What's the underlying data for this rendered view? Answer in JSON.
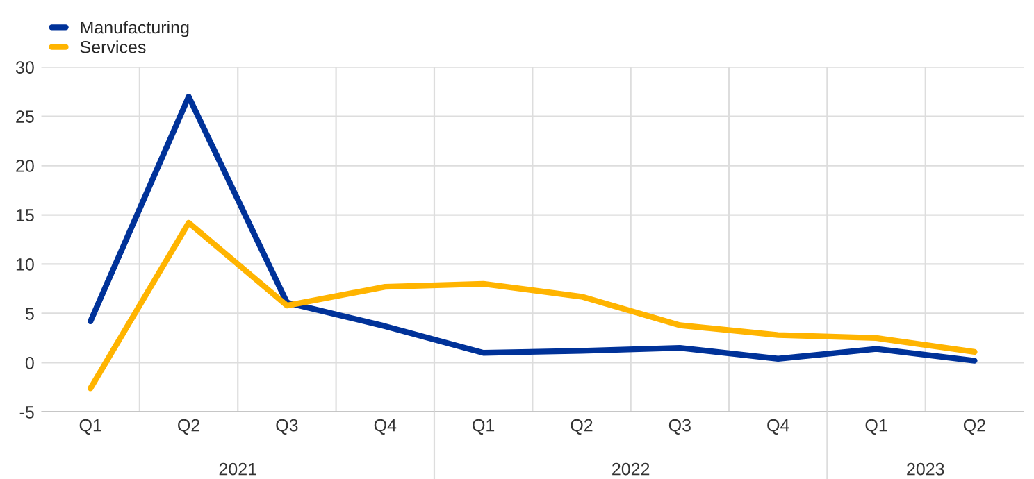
{
  "chart_data": {
    "type": "line",
    "categories": [
      "Q1",
      "Q2",
      "Q3",
      "Q4",
      "Q1",
      "Q2",
      "Q3",
      "Q4",
      "Q1",
      "Q2"
    ],
    "series": [
      {
        "name": "Manufacturing",
        "color": "#003299",
        "values": [
          4.2,
          27.0,
          6.1,
          3.7,
          1.0,
          1.2,
          1.5,
          0.4,
          1.4,
          0.2
        ]
      },
      {
        "name": "Services",
        "color": "#ffb400",
        "values": [
          -2.6,
          14.2,
          5.8,
          7.7,
          8.0,
          6.7,
          3.8,
          2.8,
          2.5,
          1.1
        ]
      }
    ],
    "annotations": [
      "2021",
      "2022",
      "2023"
    ],
    "ylim": [
      -5,
      30
    ],
    "yticks": [
      -5,
      0,
      5,
      10,
      15,
      20,
      25,
      30
    ],
    "grid": true,
    "legend": "top left",
    "marker": "none",
    "line_style": "solid"
  }
}
